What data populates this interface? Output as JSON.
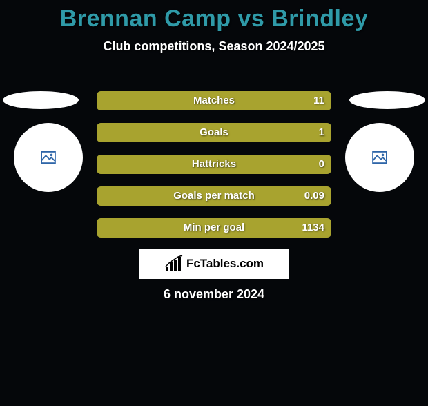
{
  "title": {
    "text": "Brennan Camp vs Brindley",
    "color": "#2f9aa8",
    "fontsize": 34
  },
  "subtitle": {
    "text": "Club competitions, Season 2024/2025",
    "color": "#ffffff",
    "fontsize": 18
  },
  "date": {
    "text": "6 november 2024",
    "color": "#ffffff",
    "fontsize": 18
  },
  "brand": {
    "text": "FcTables.com"
  },
  "icon_color": "#2f66a8",
  "bar_bg_color": "#555826",
  "bar_fill_color": "#a8a32f",
  "bar_text_fontsize": 15,
  "stats": [
    {
      "label": "Matches",
      "value": "11",
      "fill_pct": 100
    },
    {
      "label": "Goals",
      "value": "1",
      "fill_pct": 100
    },
    {
      "label": "Hattricks",
      "value": "0",
      "fill_pct": 100
    },
    {
      "label": "Goals per match",
      "value": "0.09",
      "fill_pct": 100
    },
    {
      "label": "Min per goal",
      "value": "1134",
      "fill_pct": 100
    }
  ]
}
